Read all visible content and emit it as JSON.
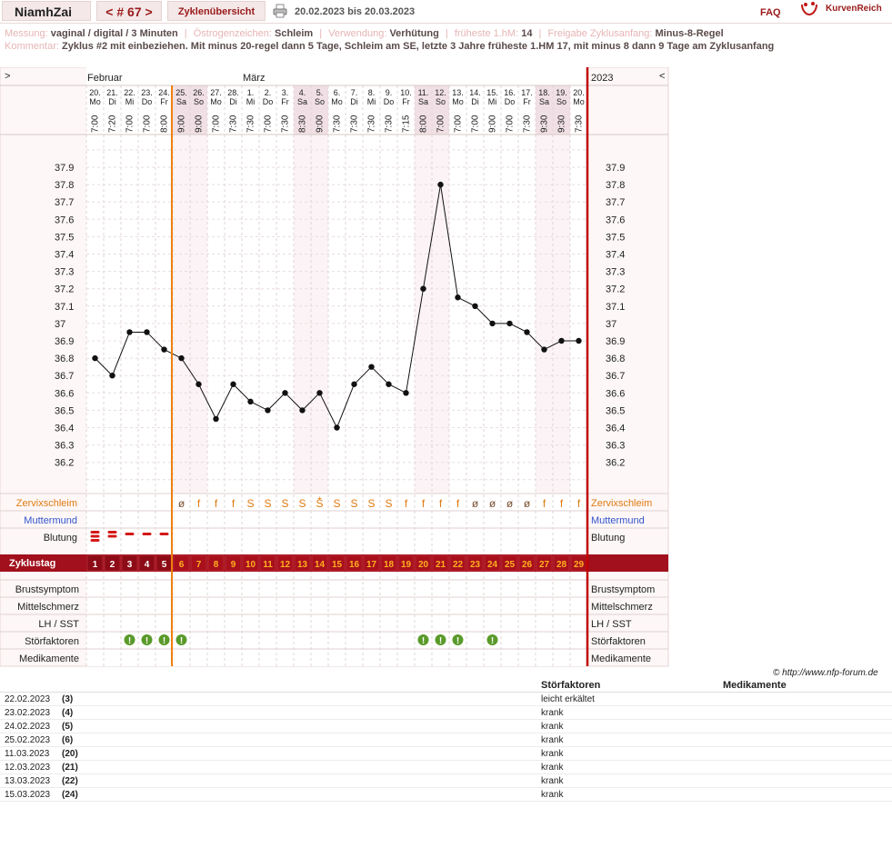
{
  "header": {
    "user": "NiamhZai",
    "cycle_nav": "< # 67 >",
    "overview_tab": "Zyklenübersicht",
    "date_range": "20.02.2023 bis 20.03.2023",
    "faq": "FAQ",
    "logo": "KurvenReich"
  },
  "info": {
    "messung_label": "Messung:",
    "messung_value": "vaginal / digital / 3 Minuten",
    "oestrogen_label": "Östrogenzeichen:",
    "oestrogen_value": "Schleim",
    "verwendung_label": "Verwendung:",
    "verwendung_value": "Verhütung",
    "hm_label": "früheste 1.hM:",
    "hm_value": "14",
    "freigabe_label": "Freigabe Zyklusanfang:",
    "freigabe_value": "Minus-8-Regel",
    "kommentar_label": "Kommentar:",
    "kommentar_value": "Zyklus #2  mit einbeziehen. Mit minus 20-regel dann 5 Tage,  Schleim am SE, letzte 3 Jahre früheste 1.HM 17, mit minus 8 dann 9 Tage am Zyklusanfang"
  },
  "chart_data": {
    "type": "line",
    "title": "",
    "ylim": [
      36.1,
      38.0
    ],
    "yticks": [
      "37.9",
      "37.8",
      "37.7",
      "37.6",
      "37.5",
      "37.4",
      "37.3",
      "37.2",
      "37.1",
      "37",
      "36.9",
      "36.8",
      "36.7",
      "36.6",
      "36.5",
      "36.4",
      "36.3",
      "36.2"
    ],
    "months": [
      "Februar",
      "März"
    ],
    "year": "2023",
    "nav_left": ">",
    "nav_right": "<",
    "days": [
      "20.",
      "21.",
      "22.",
      "23.",
      "24.",
      "25.",
      "26.",
      "27.",
      "28.",
      "1.",
      "2.",
      "3.",
      "4.",
      "5.",
      "6.",
      "7.",
      "8.",
      "9.",
      "10.",
      "11.",
      "12.",
      "13.",
      "14.",
      "15.",
      "16.",
      "17.",
      "18.",
      "19.",
      "20."
    ],
    "weekdays": [
      "Mo",
      "Di",
      "Mi",
      "Do",
      "Fr",
      "Sa",
      "So",
      "Mo",
      "Di",
      "Mi",
      "Do",
      "Fr",
      "Sa",
      "So",
      "Mo",
      "Di",
      "Mi",
      "Do",
      "Fr",
      "Sa",
      "So",
      "Mo",
      "Di",
      "Mi",
      "Do",
      "Fr",
      "Sa",
      "So",
      "Mo"
    ],
    "times": [
      "7:00",
      "7:20",
      "7:00",
      "7:00",
      "8:00",
      "9:00",
      "9:00",
      "7:00",
      "7:30",
      "7:30",
      "7:00",
      "7:30",
      "8:30",
      "9:00",
      "7:30",
      "7:30",
      "7:30",
      "7:30",
      "7:15",
      "8:00",
      "7:00",
      "7:00",
      "7:00",
      "9:00",
      "7:00",
      "7:30",
      "9:30",
      "9:30",
      "7:30"
    ],
    "temperatures": [
      36.8,
      36.7,
      36.95,
      36.95,
      36.85,
      36.8,
      36.65,
      36.45,
      36.65,
      36.55,
      36.5,
      36.6,
      36.5,
      36.6,
      36.4,
      36.65,
      36.75,
      36.65,
      36.6,
      37.2,
      37.8,
      37.15,
      37.1,
      37.0,
      37.0,
      36.95,
      36.85,
      36.9,
      36.9
    ],
    "zyklustag": [
      "1",
      "2",
      "3",
      "4",
      "5",
      "6",
      "7",
      "8",
      "9",
      "10",
      "11",
      "12",
      "13",
      "14",
      "15",
      "16",
      "17",
      "18",
      "19",
      "20",
      "21",
      "22",
      "23",
      "24",
      "25",
      "26",
      "27",
      "28",
      "29"
    ],
    "zervix": [
      "",
      "",
      "",
      "",
      "",
      "ø",
      "f",
      "f",
      "f",
      "S",
      "S",
      "S",
      "S",
      "S̄",
      "S",
      "S",
      "S",
      "S",
      "f",
      "f",
      "f",
      "f",
      "ø",
      "ø",
      "ø",
      "ø",
      "f",
      "f",
      "f"
    ],
    "zervix_mark": "+",
    "zervix_mark_day": 13,
    "bleeding": [
      3,
      2,
      1,
      1,
      1,
      0,
      0,
      0,
      0,
      0,
      0,
      0,
      0,
      0,
      0,
      0,
      0,
      0,
      0,
      0,
      0,
      0,
      0,
      0,
      0,
      0,
      0,
      0,
      0
    ],
    "stoerfaktor_days": [
      3,
      4,
      5,
      6,
      20,
      21,
      22,
      24
    ],
    "stoerfaktor_symbol": "!",
    "row_labels": {
      "zervix": "Zervixschleim",
      "muttermund": "Muttermund",
      "blutung": "Blutung",
      "zyklustag": "Zyklustag",
      "brust": "Brustsymptom",
      "mittel": "Mittelschmerz",
      "lh": "LH / SST",
      "stoer": "Störfaktoren",
      "medi": "Medikamente"
    }
  },
  "footer": {
    "copyright": "© http://www.nfp-forum.de",
    "col_stoer": "Störfaktoren",
    "col_medi": "Medikamente",
    "rows": [
      {
        "date": "22.02.2023",
        "day": "(3)",
        "text": "leicht erkältet"
      },
      {
        "date": "23.02.2023",
        "day": "(4)",
        "text": "krank"
      },
      {
        "date": "24.02.2023",
        "day": "(5)",
        "text": "krank"
      },
      {
        "date": "25.02.2023",
        "day": "(6)",
        "text": "krank"
      },
      {
        "date": "11.03.2023",
        "day": "(20)",
        "text": "krank"
      },
      {
        "date": "12.03.2023",
        "day": "(21)",
        "text": "krank"
      },
      {
        "date": "13.03.2023",
        "day": "(22)",
        "text": "krank"
      },
      {
        "date": "15.03.2023",
        "day": "(24)",
        "text": "krank"
      }
    ]
  }
}
